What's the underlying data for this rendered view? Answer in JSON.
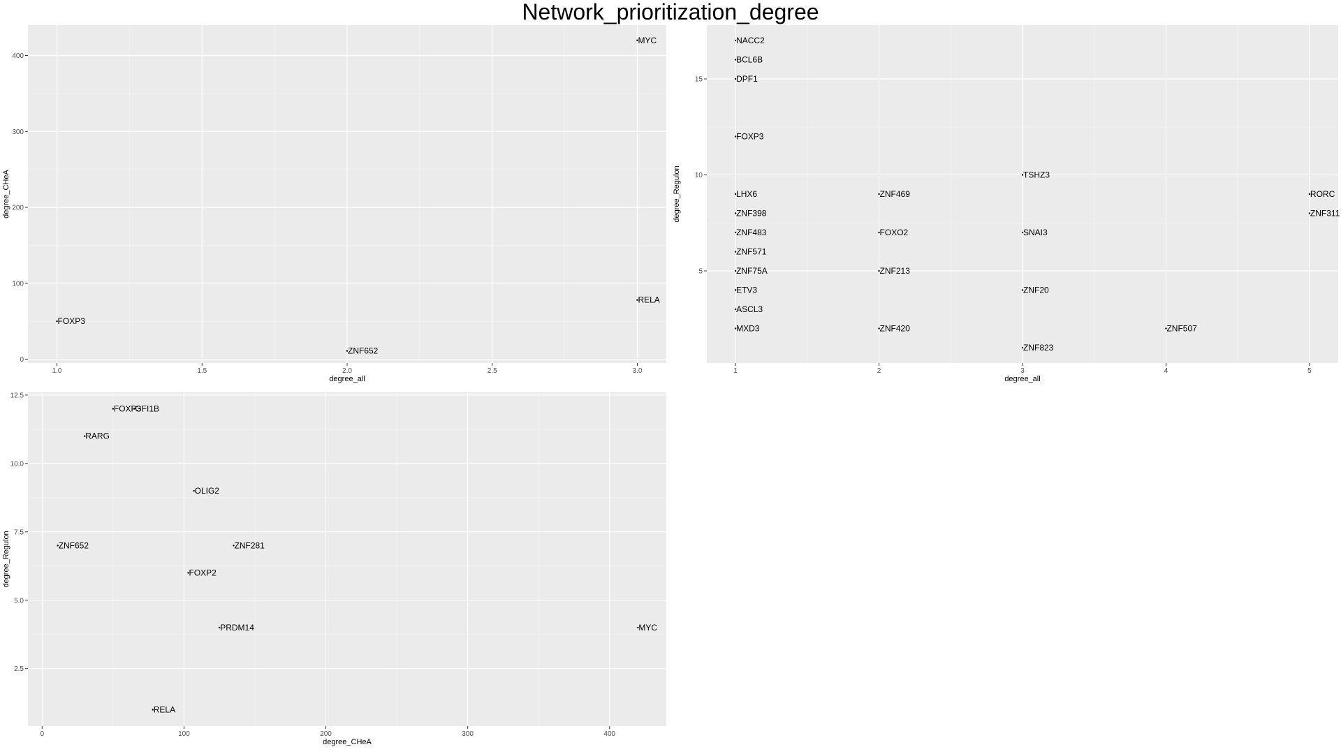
{
  "title": "Network_prioritization_degree",
  "colors": {
    "panel_background": "#ebebeb",
    "grid_major": "#ffffff",
    "grid_minor": "#f5f5f5",
    "point": "#000000",
    "text": "#000000",
    "tick_text": "#4d4d4d"
  },
  "chart_data": [
    {
      "type": "scatter",
      "xlabel": "degree_all",
      "ylabel": "degree_CHeA",
      "xlim": [
        0.9,
        3.1
      ],
      "ylim": [
        -5,
        440
      ],
      "xticks": [
        1.0,
        1.5,
        2.0,
        2.5,
        3.0
      ],
      "xtick_labels": [
        "1.0",
        "1.5",
        "2.0",
        "2.5",
        "3.0"
      ],
      "yticks": [
        0,
        100,
        200,
        300,
        400
      ],
      "ytick_labels": [
        "0",
        "100",
        "200",
        "300",
        "400"
      ],
      "grid": true,
      "points": [
        {
          "label": "MYC",
          "x": 3,
          "y": 420
        },
        {
          "label": "RELA",
          "x": 3,
          "y": 78
        },
        {
          "label": "FOXP3",
          "x": 1,
          "y": 50
        },
        {
          "label": "ZNF652",
          "x": 2,
          "y": 11
        }
      ]
    },
    {
      "type": "scatter",
      "xlabel": "degree_all",
      "ylabel": "degree_Regulon",
      "xlim": [
        0.8,
        5.2
      ],
      "ylim": [
        0.2,
        17.8
      ],
      "xticks": [
        1,
        2,
        3,
        4,
        5
      ],
      "xtick_labels": [
        "1",
        "2",
        "3",
        "4",
        "5"
      ],
      "yticks": [
        5,
        10,
        15
      ],
      "ytick_labels": [
        "5",
        "10",
        "15"
      ],
      "grid": true,
      "points": [
        {
          "label": "NACC2",
          "x": 1,
          "y": 17
        },
        {
          "label": "BCL6B",
          "x": 1,
          "y": 16
        },
        {
          "label": "DPF1",
          "x": 1,
          "y": 15
        },
        {
          "label": "FOXP3",
          "x": 1,
          "y": 12
        },
        {
          "label": "TSHZ3",
          "x": 3,
          "y": 10
        },
        {
          "label": "LHX6",
          "x": 1,
          "y": 9
        },
        {
          "label": "ZNF469",
          "x": 2,
          "y": 9
        },
        {
          "label": "RORC",
          "x": 5,
          "y": 9
        },
        {
          "label": "ZNF398",
          "x": 1,
          "y": 8
        },
        {
          "label": "ZNF311",
          "x": 5,
          "y": 8
        },
        {
          "label": "ZNF483",
          "x": 1,
          "y": 7
        },
        {
          "label": "FOXO2",
          "x": 2,
          "y": 7
        },
        {
          "label": "SNAI3",
          "x": 3,
          "y": 7
        },
        {
          "label": "ZNF571",
          "x": 1,
          "y": 6
        },
        {
          "label": "ZNF75A",
          "x": 1,
          "y": 5
        },
        {
          "label": "ZNF213",
          "x": 2,
          "y": 5
        },
        {
          "label": "ETV3",
          "x": 1,
          "y": 4
        },
        {
          "label": "ZNF20",
          "x": 3,
          "y": 4
        },
        {
          "label": "ASCL3",
          "x": 1,
          "y": 3
        },
        {
          "label": "MXD3",
          "x": 1,
          "y": 2
        },
        {
          "label": "ZNF420",
          "x": 2,
          "y": 2
        },
        {
          "label": "ZNF507",
          "x": 4,
          "y": 2
        },
        {
          "label": "ZNF823",
          "x": 3,
          "y": 1
        }
      ]
    },
    {
      "type": "scatter",
      "xlabel": "degree_CHeA",
      "ylabel": "degree_Regulon",
      "xlim": [
        -10,
        440
      ],
      "ylim": [
        0.4,
        12.6
      ],
      "xticks": [
        0,
        100,
        200,
        300,
        400
      ],
      "xtick_labels": [
        "0",
        "100",
        "200",
        "300",
        "400"
      ],
      "yticks": [
        2.5,
        5.0,
        7.5,
        10.0,
        12.5
      ],
      "ytick_labels": [
        "2.5",
        "5.0",
        "7.5",
        "10.0",
        "12.5"
      ],
      "grid": true,
      "points": [
        {
          "label": "FOXP3",
          "x": 50,
          "y": 12
        },
        {
          "label": "GFI1B",
          "x": 65,
          "y": 12
        },
        {
          "label": "RARG",
          "x": 30,
          "y": 11
        },
        {
          "label": "OLIG2",
          "x": 107,
          "y": 9
        },
        {
          "label": "ZNF652",
          "x": 11,
          "y": 7
        },
        {
          "label": "ZNF281",
          "x": 135,
          "y": 7
        },
        {
          "label": "FOXP2",
          "x": 103,
          "y": 6
        },
        {
          "label": "PRDM14",
          "x": 125,
          "y": 4
        },
        {
          "label": "MYC",
          "x": 420,
          "y": 4
        },
        {
          "label": "RELA",
          "x": 78,
          "y": 1
        }
      ]
    }
  ]
}
